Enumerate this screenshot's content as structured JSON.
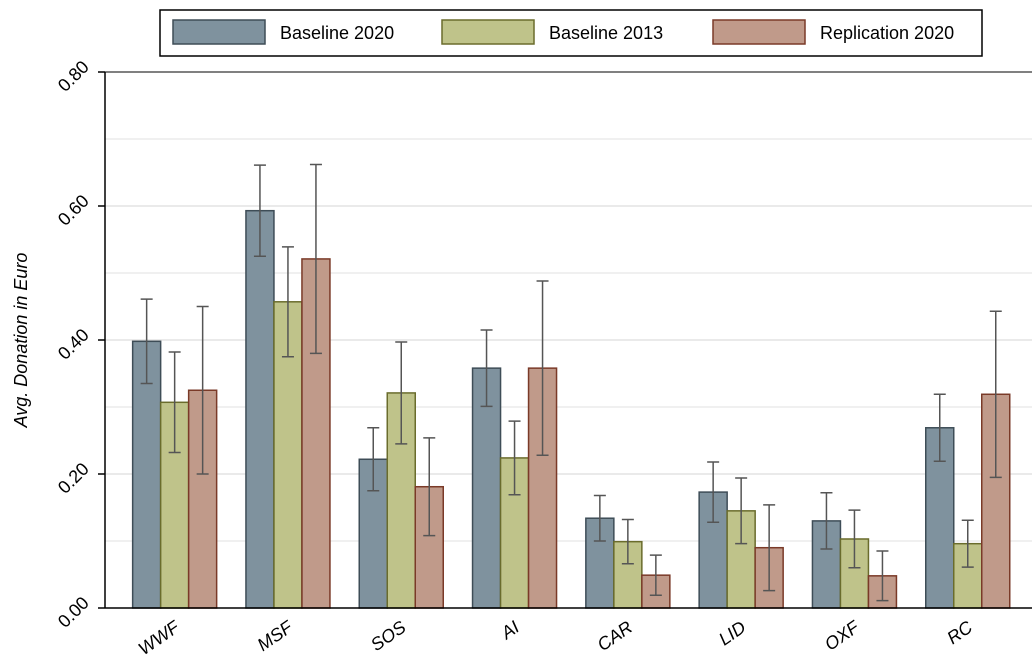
{
  "chart_data": {
    "type": "bar",
    "y_label": "Avg. Donation in Euro",
    "categories": [
      "WWF",
      "MSF",
      "SOS",
      "AI",
      "CAR",
      "LID",
      "OXF",
      "RC"
    ],
    "series": [
      {
        "name": "Baseline 2020",
        "color": "#7f929e",
        "edge": "#3e4d57",
        "values": [
          0.398,
          0.593,
          0.222,
          0.358,
          0.134,
          0.173,
          0.13,
          0.269
        ],
        "errors": [
          0.063,
          0.068,
          0.047,
          0.057,
          0.034,
          0.045,
          0.042,
          0.05
        ]
      },
      {
        "name": "Baseline 2013",
        "color": "#bfc38a",
        "edge": "#6a6c2c",
        "values": [
          0.307,
          0.457,
          0.321,
          0.224,
          0.099,
          0.145,
          0.103,
          0.096
        ],
        "errors": [
          0.075,
          0.082,
          0.076,
          0.055,
          0.033,
          0.049,
          0.043,
          0.035
        ]
      },
      {
        "name": "Replication 2020",
        "color": "#c09a8a",
        "edge": "#7a3a28",
        "values": [
          0.325,
          0.521,
          0.181,
          0.358,
          0.049,
          0.09,
          0.048,
          0.319
        ],
        "errors": [
          0.125,
          0.141,
          0.073,
          0.13,
          0.03,
          0.064,
          0.037,
          0.124
        ]
      }
    ],
    "ylim": [
      0,
      0.8
    ],
    "yticks": [
      {
        "value": 0,
        "label": "0.00"
      },
      {
        "value": 0.2,
        "label": "0.20"
      },
      {
        "value": 0.4,
        "label": "0.40"
      },
      {
        "value": 0.6,
        "label": "0.60"
      },
      {
        "value": 0.8,
        "label": "0.80"
      }
    ],
    "minor_gridlines": [
      0.1,
      0.3,
      0.5,
      0.7
    ],
    "grid": true,
    "legend": "top"
  }
}
